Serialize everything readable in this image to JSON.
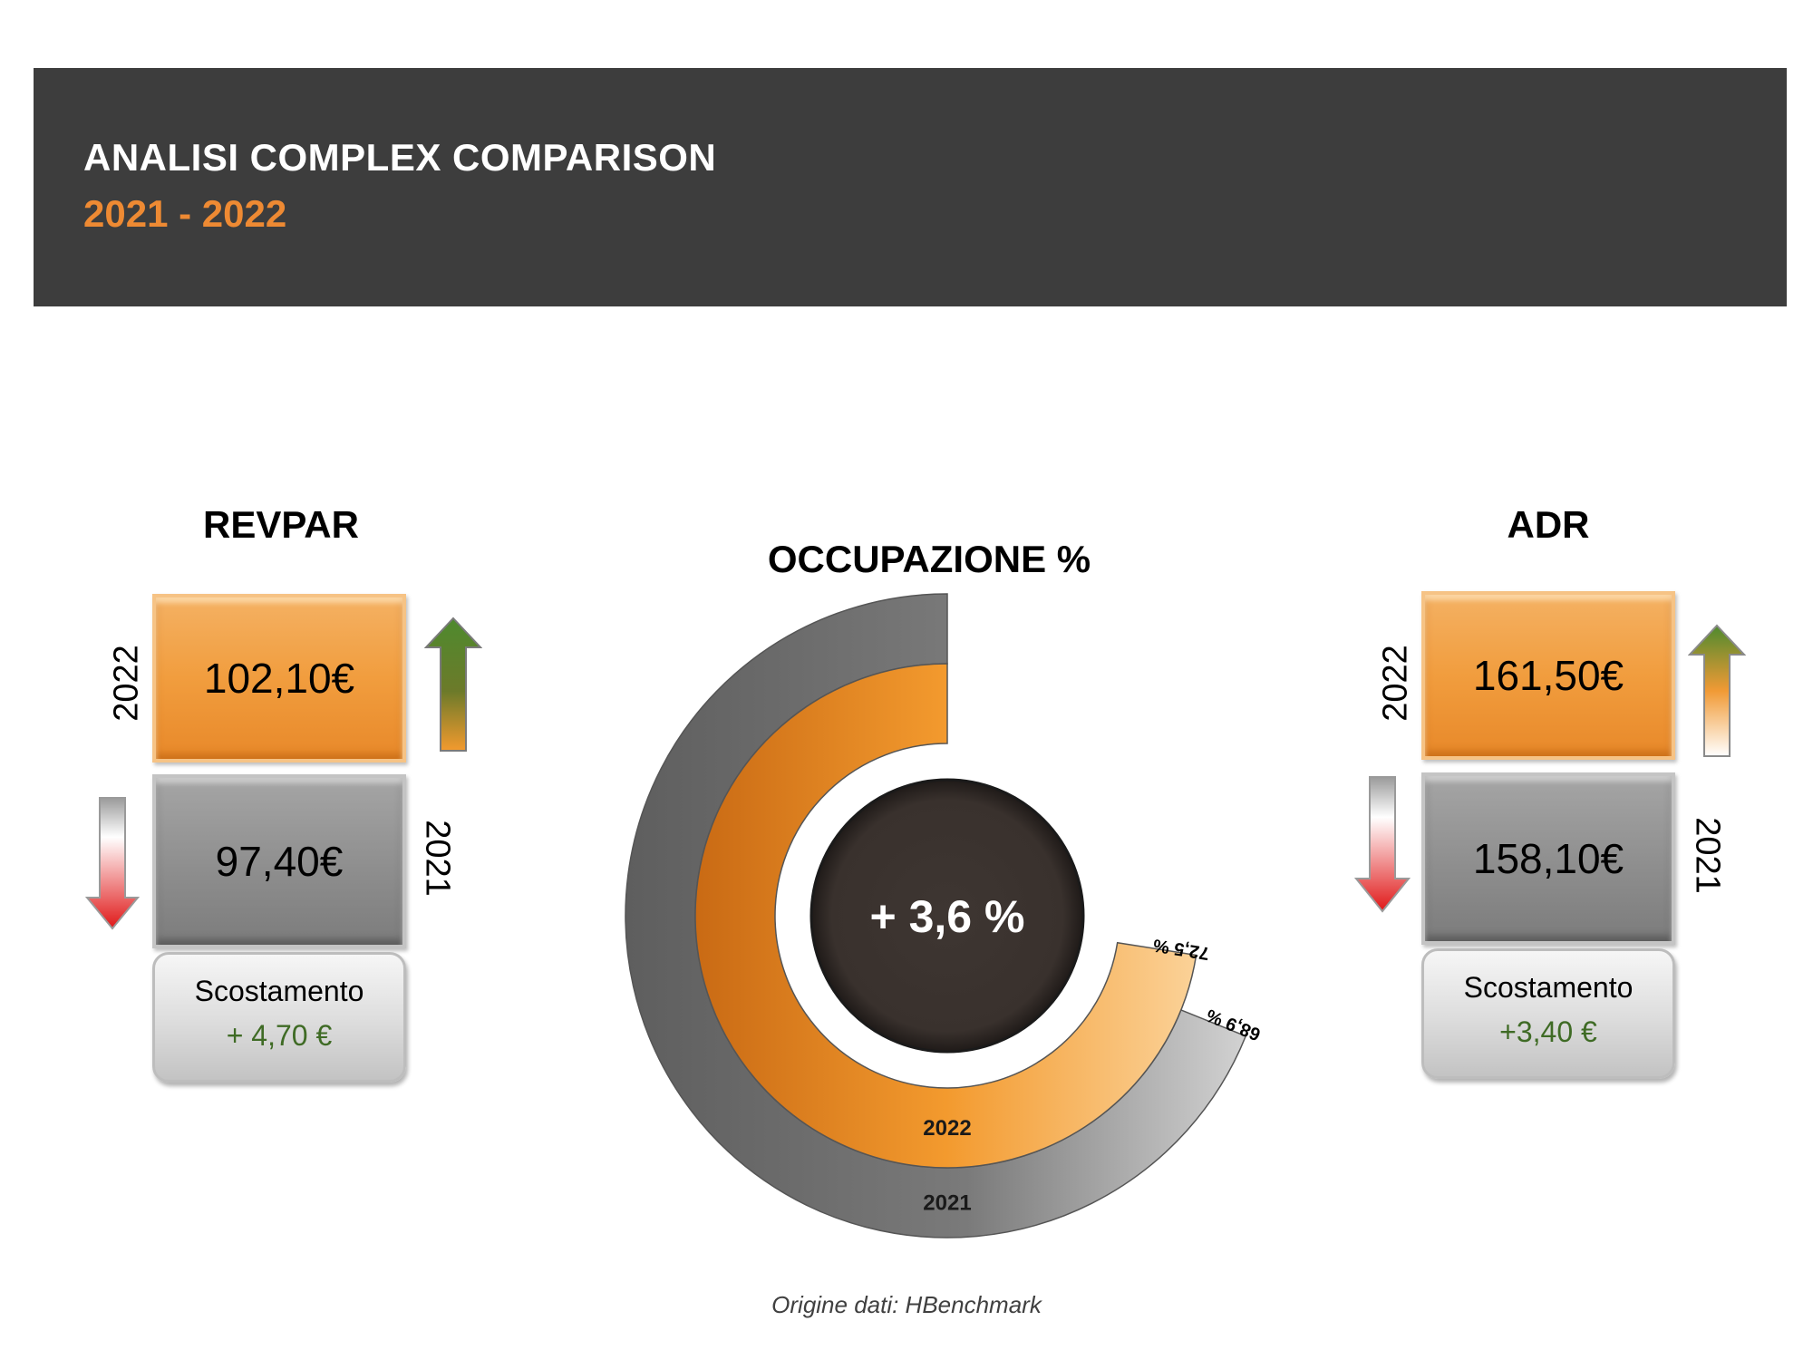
{
  "header": {
    "title": "ANALISI COMPLEX COMPARISON",
    "subtitle": "2021 - 2022"
  },
  "revpar": {
    "title": "REVPAR",
    "year_2022_label": "2022",
    "value_2022": "102,10€",
    "year_2021_label": "2021",
    "value_2021": "97,40€",
    "variance_label": "Scostamento",
    "variance_value": "+ 4,70 €",
    "trend_2022": "arrow-up-icon",
    "trend_2021": "arrow-down-icon"
  },
  "adr": {
    "title": "ADR",
    "year_2022_label": "2022",
    "value_2022": "161,50€",
    "year_2021_label": "2021",
    "value_2021": "158,10€",
    "variance_label": "Scostamento",
    "variance_value": "+3,40 €",
    "trend_2022": "arrow-up-icon",
    "trend_2021": "arrow-down-icon"
  },
  "occupazione": {
    "title": "OCCUPAZIONE %",
    "center_label": "+ 3,6 %"
  },
  "chart_data": {
    "type": "radial-bar",
    "title": "OCCUPAZIONE %",
    "max": 100,
    "series": [
      {
        "name": "2021",
        "value": 68.9,
        "label": "68,9 %",
        "color": "#8a8a8a"
      },
      {
        "name": "2022",
        "value": 72.5,
        "label": "72,5 %",
        "color": "#f2992e"
      }
    ],
    "center_text": "+ 3,6 %"
  },
  "colors": {
    "header_bg": "#3d3d3d",
    "accent_orange": "#ee8a33",
    "positive_green": "#3f6b25",
    "negative_red": "#e02020"
  },
  "footer": {
    "source": "Origine dati:  HBenchmark"
  }
}
